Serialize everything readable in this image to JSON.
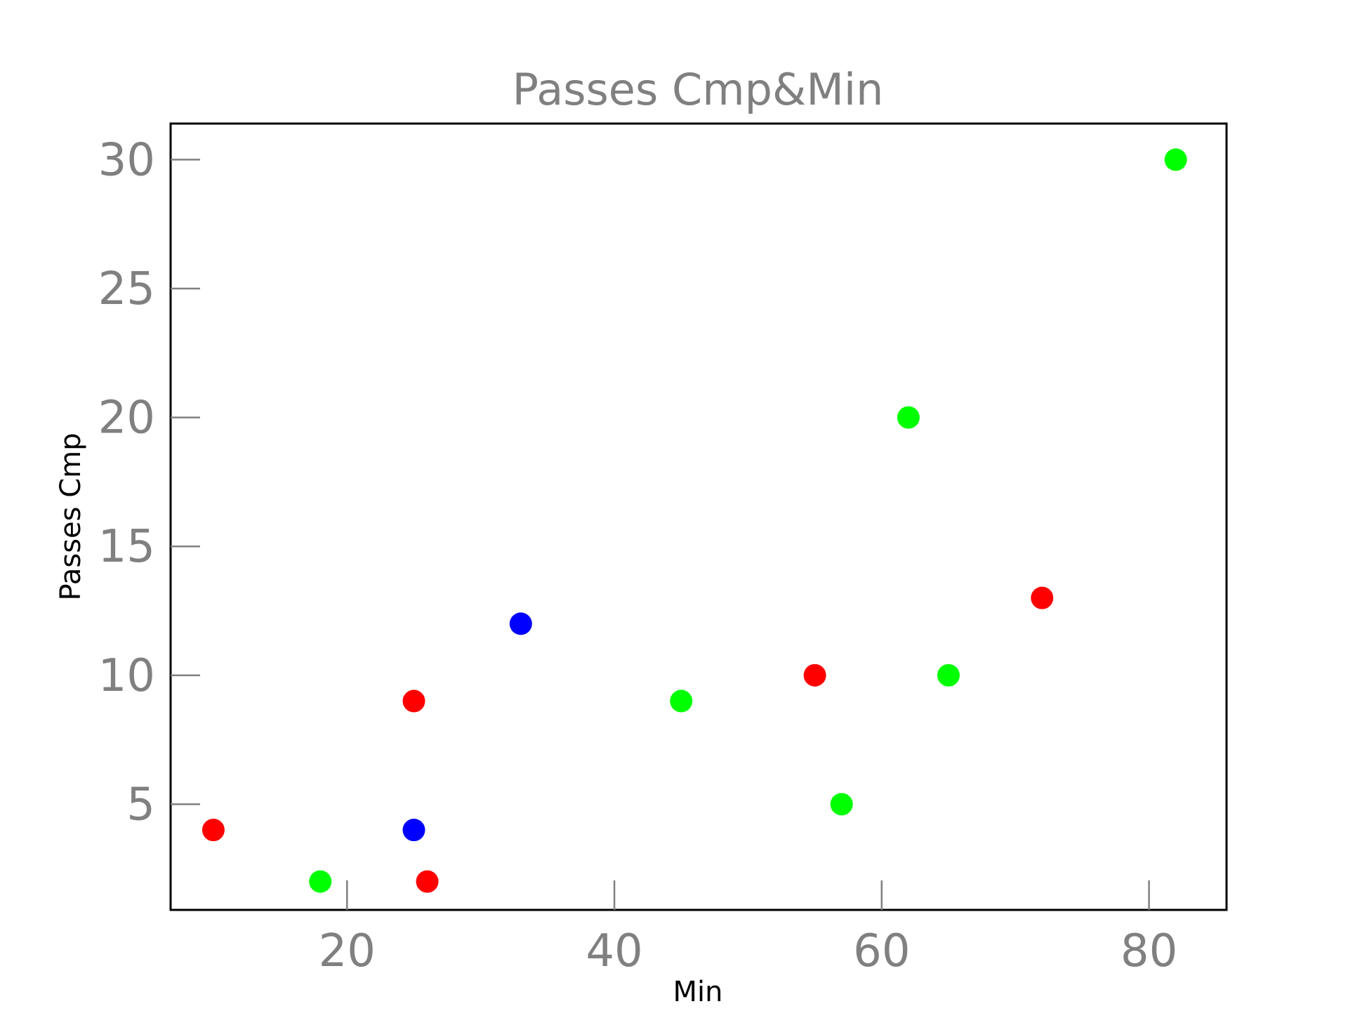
{
  "chart_data": {
    "type": "scatter",
    "title": "Passes Cmp&Min",
    "xlabel": "Min",
    "ylabel": "Passes Cmp",
    "xlim": [
      6.8,
      85.8
    ],
    "ylim": [
      0.9,
      31.4
    ],
    "xticks": [
      20,
      40,
      60,
      80
    ],
    "yticks": [
      5,
      10,
      15,
      20,
      25,
      30
    ],
    "grid": false,
    "legend": "none",
    "colors": {
      "red": "#ff0000",
      "green": "#00ff00",
      "blue": "#0000ff",
      "tick": "#808080",
      "frame": "#000000"
    },
    "series": [
      {
        "color": "#ff0000",
        "points": [
          {
            "x": 10,
            "y": 4
          },
          {
            "x": 25,
            "y": 9
          },
          {
            "x": 26,
            "y": 2
          },
          {
            "x": 55,
            "y": 10
          },
          {
            "x": 72,
            "y": 13
          }
        ]
      },
      {
        "color": "#00ff00",
        "points": [
          {
            "x": 18,
            "y": 2
          },
          {
            "x": 45,
            "y": 9
          },
          {
            "x": 57,
            "y": 5
          },
          {
            "x": 62,
            "y": 20
          },
          {
            "x": 65,
            "y": 10
          },
          {
            "x": 82,
            "y": 30
          }
        ]
      },
      {
        "color": "#0000ff",
        "points": [
          {
            "x": 25,
            "y": 4
          },
          {
            "x": 33,
            "y": 12
          }
        ]
      }
    ]
  }
}
